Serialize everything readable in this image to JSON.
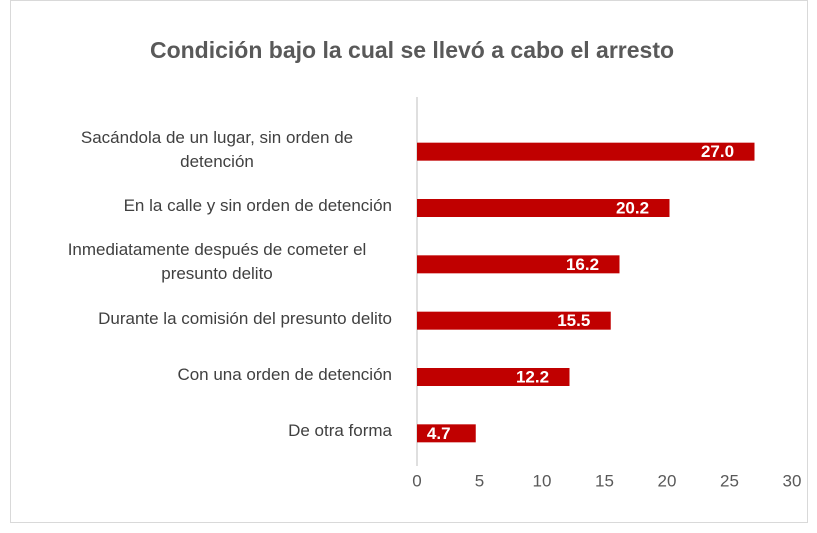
{
  "chart_data": {
    "type": "barh",
    "title": "Condición bajo la cual se llevó a cabo el arresto",
    "categories": [
      "Sacándola de un lugar, sin orden de detención",
      "En la calle y sin orden de detención",
      "Inmediatamente después de cometer el presunto delito",
      "Durante la comisión del presunto delito",
      "Con una orden de detención",
      "De otra forma"
    ],
    "values": [
      27.0,
      20.2,
      16.2,
      15.5,
      12.2,
      4.7
    ],
    "value_labels": [
      "27.0",
      "20.2",
      "16.2",
      "15.5",
      "12.2",
      "4.7"
    ],
    "color": "#c00000",
    "xlim": [
      0,
      30
    ],
    "xticks": [
      0,
      5,
      10,
      15,
      20,
      25,
      30
    ],
    "grid": false
  }
}
